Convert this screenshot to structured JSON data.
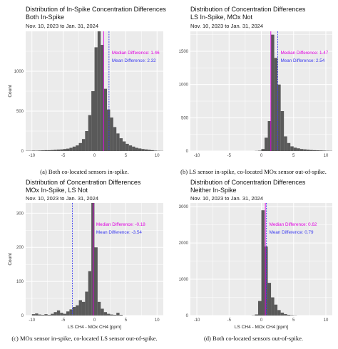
{
  "colors": {
    "panel_bg": "#ebebeb",
    "grid": "#ffffff",
    "bar": "#595959",
    "median": "#e000e0",
    "mean": "#3a3af0"
  },
  "chart_data": [
    {
      "type": "bar",
      "title": "Distribution of In-Spike Concentration Differences",
      "subtitle": "Both In-Spike",
      "date_range": "Nov. 10, 2023 to Jan. 31, 2024",
      "ylabel": "Count",
      "xlabel": "",
      "xlim": [
        -11,
        11
      ],
      "ylim": [
        0,
        1500
      ],
      "x_ticks": [
        -10,
        -5,
        0,
        5,
        10
      ],
      "y_ticks": [
        0,
        500,
        1000
      ],
      "bin_width": 0.5,
      "bin_start": -11,
      "values": [
        3,
        3,
        5,
        4,
        6,
        8,
        10,
        10,
        12,
        15,
        18,
        20,
        25,
        30,
        40,
        55,
        70,
        100,
        150,
        250,
        450,
        750,
        1300,
        1600,
        1330,
        780,
        520,
        420,
        300,
        220,
        160,
        120,
        90,
        70,
        55,
        40,
        32,
        25,
        20,
        15,
        10,
        5,
        3,
        2
      ],
      "median_label": "Median Difference: 1.46",
      "mean_label": "Mean Difference: 2.32",
      "median": 1.46,
      "mean": 2.32,
      "caption": "(a) Both co-located sensors in-spike."
    },
    {
      "type": "bar",
      "title": "Distribution of Concentration Differences",
      "subtitle": "LS In-Spike, MOx Not",
      "date_range": "Nov. 10, 2023 to Jan. 31, 2024",
      "ylabel": "",
      "xlabel": "",
      "xlim": [
        -11,
        11
      ],
      "ylim": [
        0,
        1800
      ],
      "x_ticks": [
        -10,
        -5,
        0,
        5,
        10
      ],
      "y_ticks": [
        0,
        500,
        1000,
        1500
      ],
      "bin_width": 0.5,
      "bin_start": -11,
      "values": [
        0,
        0,
        0,
        0,
        0,
        0,
        0,
        0,
        0,
        0,
        0,
        0,
        0,
        0,
        0,
        0,
        0,
        0,
        0,
        0,
        2,
        5,
        30,
        200,
        450,
        1750,
        1400,
        1000,
        600,
        220,
        120,
        70,
        50,
        40,
        30,
        25,
        20,
        15,
        12,
        10,
        8,
        6,
        4,
        3
      ],
      "median_label": "Median Difference: 1.47",
      "mean_label": "Mean Difference: 2.54",
      "median": 1.47,
      "mean": 2.54,
      "caption": "(b) LS sensor in-spike, co-located MOx sensor out-of-spike."
    },
    {
      "type": "bar",
      "title": "Distribution of Concentration Differences",
      "subtitle": "MOx In-Spike, LS Not",
      "date_range": "Nov. 10, 2023 to Jan. 31, 2024",
      "ylabel": "Count",
      "xlabel": "LS CH4 - MOx CH4 [ppm]",
      "xlim": [
        -11,
        11
      ],
      "ylim": [
        0,
        330
      ],
      "x_ticks": [
        -10,
        -5,
        0,
        5,
        10
      ],
      "y_ticks": [
        0,
        100,
        200,
        300
      ],
      "bin_width": 0.5,
      "bin_start": -11,
      "values": [
        0,
        0,
        4,
        6,
        3,
        2,
        4,
        2,
        5,
        10,
        15,
        8,
        5,
        12,
        18,
        25,
        30,
        45,
        40,
        70,
        130,
        330,
        200,
        40,
        20,
        10,
        5,
        3,
        2,
        8,
        2,
        0,
        0,
        0,
        0,
        0,
        0,
        0,
        0,
        0,
        0,
        0,
        0,
        0
      ],
      "median_label": "Median Difference: -0.18",
      "mean_label": "Mean Difference: -3.54",
      "median": -0.18,
      "mean": -3.54,
      "caption": "(c) MOx sensor in-spike, co-located LS sensor out-of-spike."
    },
    {
      "type": "bar",
      "title": "Distribution of Concentration Differences",
      "subtitle": "Neither In-Spike",
      "date_range": "Nov. 10, 2023 to Jan. 31, 2024",
      "ylabel": "",
      "xlabel": "LS CH4 - MOx CH4 [ppm]",
      "xlim": [
        -11,
        11
      ],
      "ylim": [
        0,
        3100
      ],
      "x_ticks": [
        -10,
        -5,
        0,
        5,
        10
      ],
      "y_ticks": [
        0,
        1000,
        2000,
        3000
      ],
      "bin_width": 0.5,
      "bin_start": -11,
      "values": [
        0,
        0,
        0,
        0,
        0,
        0,
        0,
        0,
        0,
        0,
        0,
        0,
        0,
        0,
        0,
        0,
        0,
        0,
        0,
        5,
        30,
        400,
        2900,
        1900,
        900,
        500,
        300,
        150,
        80,
        40,
        20,
        10,
        5,
        0,
        0,
        0,
        0,
        0,
        0,
        0,
        0,
        0,
        0,
        0
      ],
      "median_label": "Median Difference: 0.62",
      "mean_label": "Mean Difference: 0.79",
      "median": 0.62,
      "mean": 0.79,
      "caption": "(d) Both co-located sensors out-of-spike."
    }
  ]
}
